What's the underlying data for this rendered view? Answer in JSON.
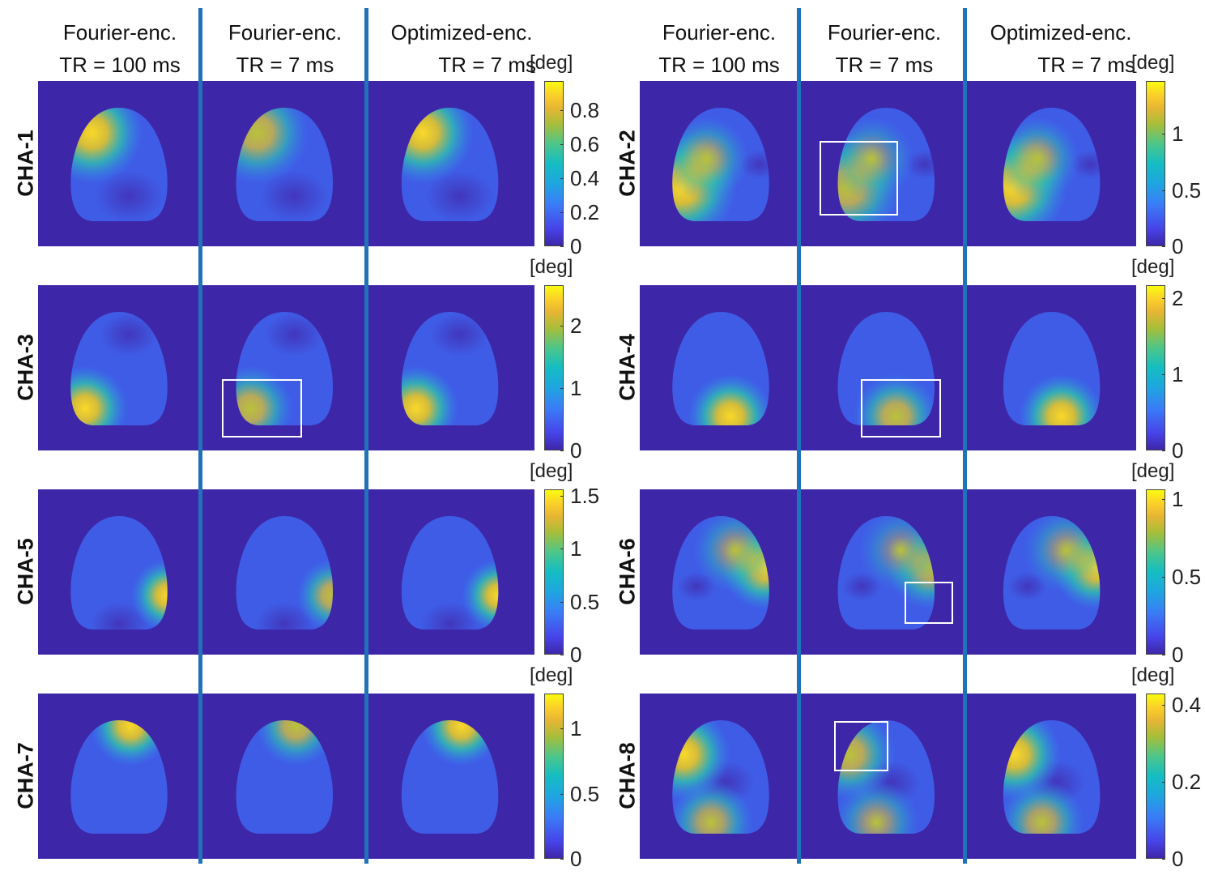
{
  "groups": [
    {
      "columns": [
        {
          "line1": "Fourier-enc.",
          "line2": "TR = 100 ms"
        },
        {
          "line1": "Fourier-enc.",
          "line2": "TR = 7 ms"
        },
        {
          "line1": "Optimized-enc.",
          "line2": "TR = 7 ms"
        }
      ]
    },
    {
      "columns": [
        {
          "line1": "Fourier-enc.",
          "line2": "TR = 100 ms"
        },
        {
          "line1": "Fourier-enc.",
          "line2": "TR = 7 ms"
        },
        {
          "line1": "Optimized-enc.",
          "line2": "TR = 7 ms"
        }
      ]
    }
  ],
  "unit": "[deg]",
  "channels": [
    {
      "label": "CHA-1",
      "colorbar": {
        "min": 0,
        "max": 0.97,
        "ticks": [
          0,
          0.2,
          0.4,
          0.6,
          0.8
        ],
        "tick_labels": [
          "0",
          "0.2",
          "0.4",
          "0.6",
          "0.8"
        ]
      }
    },
    {
      "label": "CHA-2",
      "colorbar": {
        "min": 0,
        "max": 1.47,
        "ticks": [
          0,
          0.5,
          1
        ],
        "tick_labels": [
          "0",
          "0.5",
          "1"
        ]
      }
    },
    {
      "label": "CHA-3",
      "colorbar": {
        "min": 0,
        "max": 2.65,
        "ticks": [
          0,
          1,
          2
        ],
        "tick_labels": [
          "0",
          "1",
          "2"
        ]
      }
    },
    {
      "label": "CHA-4",
      "colorbar": {
        "min": 0,
        "max": 2.17,
        "ticks": [
          0,
          1,
          2
        ],
        "tick_labels": [
          "0",
          "1",
          "2"
        ]
      }
    },
    {
      "label": "CHA-5",
      "colorbar": {
        "min": 0,
        "max": 1.56,
        "ticks": [
          0,
          0.5,
          1,
          1.5
        ],
        "tick_labels": [
          "0",
          "0.5",
          "1",
          "1.5"
        ]
      }
    },
    {
      "label": "CHA-6",
      "colorbar": {
        "min": 0,
        "max": 1.06,
        "ticks": [
          0,
          0.5,
          1
        ],
        "tick_labels": [
          "0",
          "0.5",
          "1"
        ]
      }
    },
    {
      "label": "CHA-7",
      "colorbar": {
        "min": 0,
        "max": 1.27,
        "ticks": [
          0,
          0.5,
          1
        ],
        "tick_labels": [
          "0",
          "0.5",
          "1"
        ]
      }
    },
    {
      "label": "CHA-8",
      "colorbar": {
        "min": 0,
        "max": 0.43,
        "ticks": [
          0,
          0.2,
          0.4
        ],
        "tick_labels": [
          "0",
          "0.2",
          "0.4"
        ]
      }
    }
  ],
  "colors": {
    "background": "#3e26a8",
    "divider": "#1f73b9",
    "highlight_box": "#ffffff"
  }
}
